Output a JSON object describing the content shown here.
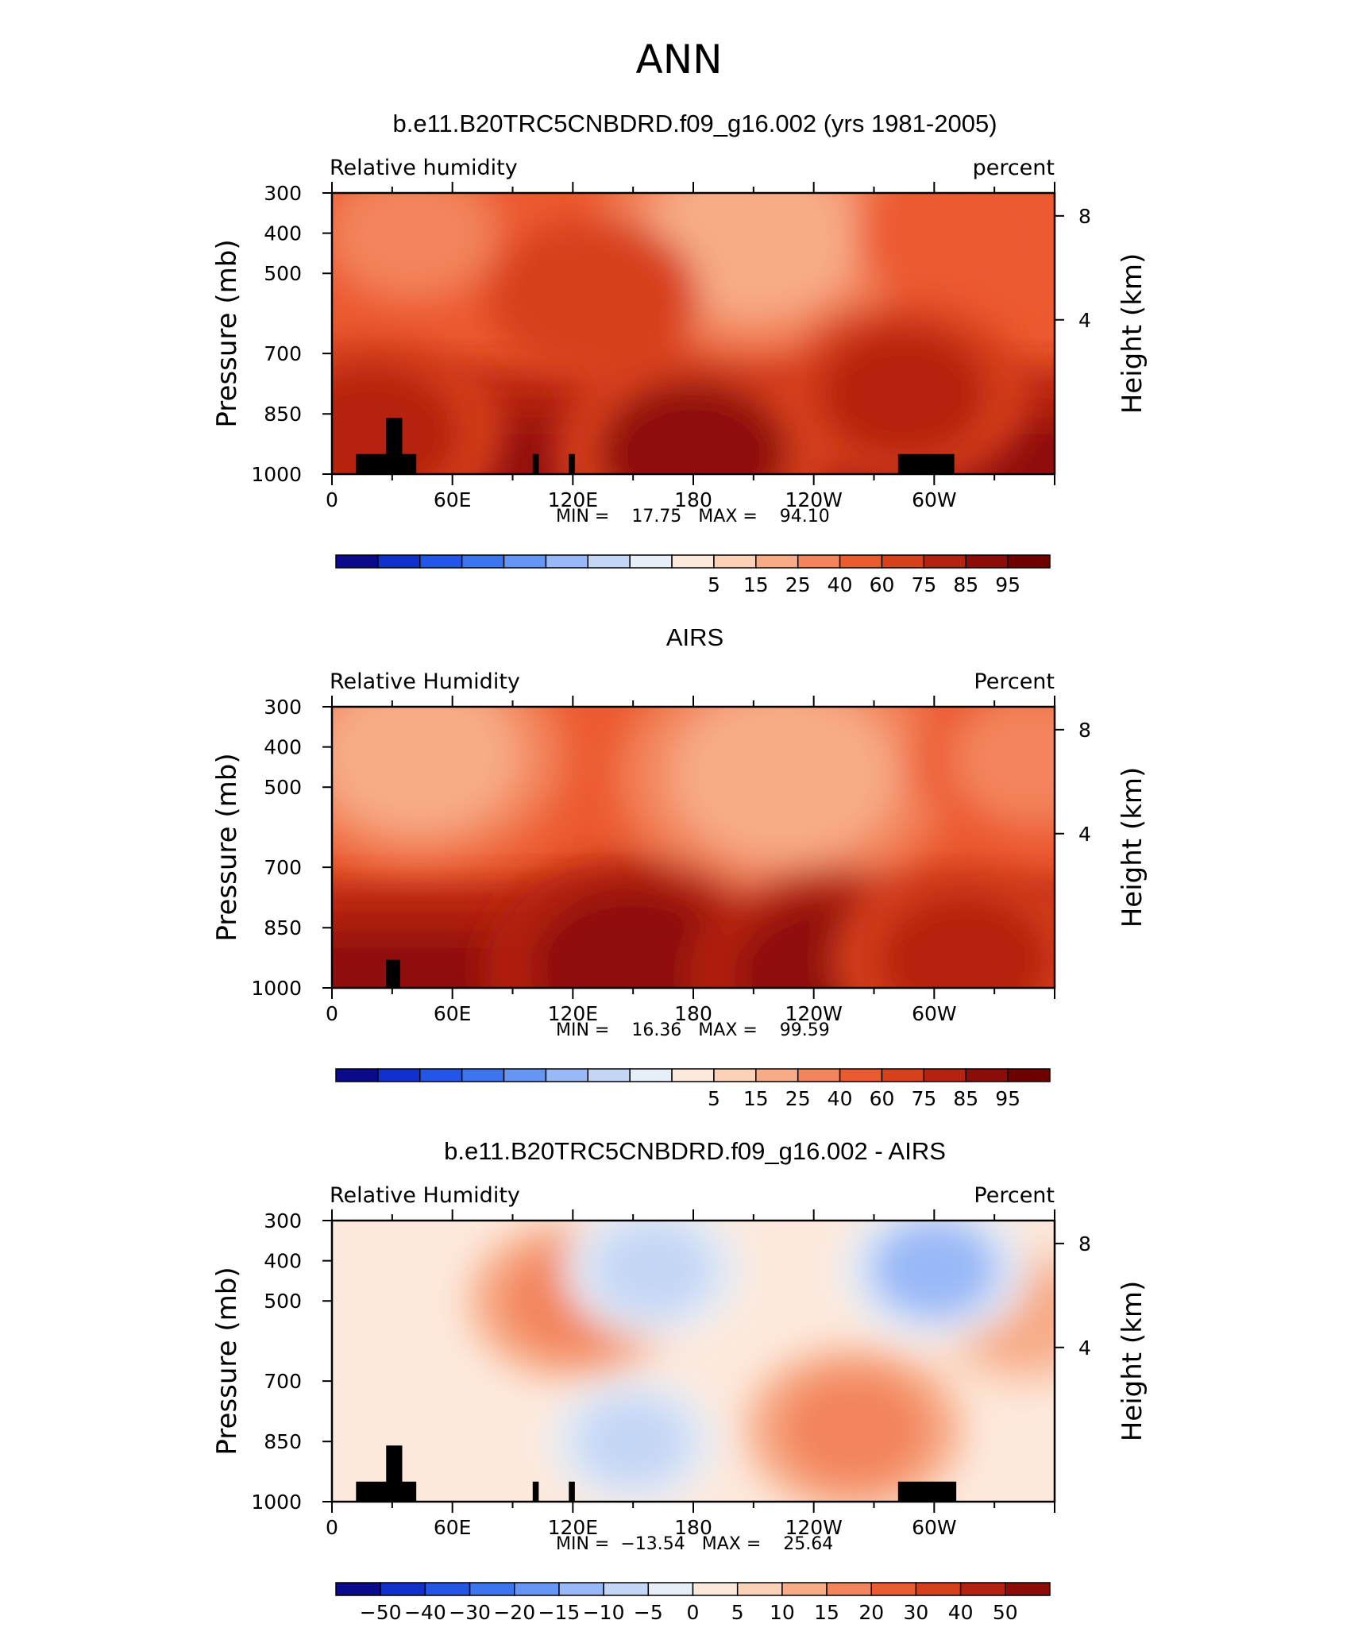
{
  "figure_title": "ANN",
  "chart_data": [
    {
      "type": "heatmap",
      "title": "b.e11.B20TRC5CNBDRD.f09_g16.002 (yrs 1981-2005)",
      "left_label": "Relative  humidity",
      "right_label": "percent",
      "ylabel": "Pressure  (mb)",
      "ylabel_right": "Height  (km)",
      "xlabel": "",
      "x_ticks": [
        "0",
        "60E",
        "120E",
        "180",
        "120W",
        "60W"
      ],
      "y_ticks": [
        "300",
        "400",
        "500",
        "700",
        "850",
        "1000"
      ],
      "y_ticks_right": [
        "4",
        "8"
      ],
      "xlim": [
        0,
        360
      ],
      "ylim": [
        1000,
        300
      ],
      "stats": "MIN =    17.75   MAX =    94.10",
      "colorbar_levels": [
        "5",
        "15",
        "25",
        "40",
        "60",
        "75",
        "85",
        "95"
      ],
      "colorbar_colors": [
        "#0a0a8c",
        "#0f2fcf",
        "#2356e8",
        "#3d74f0",
        "#6596f5",
        "#98b8f7",
        "#c4d6f5",
        "#e6eef8",
        "#fde9dc",
        "#fbd1b8",
        "#f7ac87",
        "#f3845b",
        "#ec5a30",
        "#d8401c",
        "#b52310",
        "#8e0c08",
        "#6e0000"
      ],
      "terrain_blocks": [
        {
          "lon": [
            12,
            33
          ],
          "p_top": 950
        },
        {
          "lon": [
            27,
            35
          ],
          "p_top": 860
        },
        {
          "lon": [
            33,
            42
          ],
          "p_top": 950
        },
        {
          "lon": [
            100,
            103
          ],
          "p_top": 950
        },
        {
          "lon": [
            118,
            121
          ],
          "p_top": 950
        },
        {
          "lon": [
            282,
            310
          ],
          "p_top": 950
        }
      ],
      "fields": [
        {
          "lon": 210,
          "p": 410,
          "value": 22
        },
        {
          "lon": 40,
          "p": 400,
          "value": 35
        },
        {
          "lon": 310,
          "p": 400,
          "value": 44
        },
        {
          "lon": 130,
          "p": 560,
          "value": 75
        },
        {
          "lon": 285,
          "p": 800,
          "value": 82
        },
        {
          "lon": 180,
          "p": 950,
          "value": 88
        },
        {
          "lon": 20,
          "p": 900,
          "value": 85
        }
      ]
    },
    {
      "type": "heatmap",
      "title": "AIRS",
      "left_label": "Relative  Humidity",
      "right_label": "Percent",
      "ylabel": "Pressure  (mb)",
      "ylabel_right": "Height  (km)",
      "xlabel": "",
      "x_ticks": [
        "0",
        "60E",
        "120E",
        "180",
        "120W",
        "60W"
      ],
      "y_ticks": [
        "300",
        "400",
        "500",
        "700",
        "850",
        "1000"
      ],
      "y_ticks_right": [
        "4",
        "8"
      ],
      "xlim": [
        0,
        360
      ],
      "ylim": [
        1000,
        300
      ],
      "stats": "MIN =    16.36   MAX =    99.59",
      "colorbar_levels": [
        "5",
        "15",
        "25",
        "40",
        "60",
        "75",
        "85",
        "95"
      ],
      "colorbar_colors": [
        "#0a0a8c",
        "#0f2fcf",
        "#2356e8",
        "#3d74f0",
        "#6596f5",
        "#98b8f7",
        "#c4d6f5",
        "#e6eef8",
        "#fde9dc",
        "#fbd1b8",
        "#f7ac87",
        "#f3845b",
        "#ec5a30",
        "#d8401c",
        "#b52310",
        "#8e0c08",
        "#6e0000"
      ],
      "terrain_blocks": [
        {
          "lon": [
            27,
            34
          ],
          "p_top": 930
        }
      ],
      "fields": [
        {
          "lon": 225,
          "p": 470,
          "value": 18
        },
        {
          "lon": 43,
          "p": 420,
          "value": 25
        },
        {
          "lon": 350,
          "p": 430,
          "value": 35
        },
        {
          "lon": 150,
          "p": 950,
          "value": 92
        },
        {
          "lon": 250,
          "p": 970,
          "value": 90
        },
        {
          "lon": 315,
          "p": 930,
          "value": 84
        }
      ]
    },
    {
      "type": "heatmap",
      "title": "b.e11.B20TRC5CNBDRD.f09_g16.002 - AIRS",
      "left_label": "Relative  Humidity",
      "right_label": "Percent",
      "ylabel": "Pressure  (mb)",
      "ylabel_right": "Height  (km)",
      "xlabel": "",
      "x_ticks": [
        "0",
        "60E",
        "120E",
        "180",
        "120W",
        "60W"
      ],
      "y_ticks": [
        "300",
        "400",
        "500",
        "700",
        "850",
        "1000"
      ],
      "y_ticks_right": [
        "4",
        "8"
      ],
      "xlim": [
        0,
        360
      ],
      "ylim": [
        1000,
        300
      ],
      "stats": "MIN =  −13.54   MAX =    25.64",
      "colorbar_levels": [
        "−50",
        "−40",
        "−30",
        "−20",
        "−15",
        "−10",
        "−5",
        "0",
        "5",
        "10",
        "15",
        "20",
        "30",
        "40",
        "50"
      ],
      "colorbar_colors": [
        "#0a0a8c",
        "#0f2fcf",
        "#2356e8",
        "#3d74f0",
        "#6596f5",
        "#98b8f7",
        "#c4d6f5",
        "#e6eef8",
        "#fde9dc",
        "#fbd1b8",
        "#f7ac87",
        "#f3845b",
        "#ec5a30",
        "#d8401c",
        "#b52310",
        "#8e0c08"
      ],
      "terrain_blocks": [
        {
          "lon": [
            12,
            33
          ],
          "p_top": 950
        },
        {
          "lon": [
            27,
            35
          ],
          "p_top": 860
        },
        {
          "lon": [
            33,
            42
          ],
          "p_top": 950
        },
        {
          "lon": [
            100,
            103
          ],
          "p_top": 950
        },
        {
          "lon": [
            118,
            121
          ],
          "p_top": 950
        },
        {
          "lon": [
            282,
            311
          ],
          "p_top": 950
        }
      ],
      "fields": [
        {
          "lon": 260,
          "p": 820,
          "value": 20
        },
        {
          "lon": 120,
          "p": 500,
          "value": 18
        },
        {
          "lon": 345,
          "p": 540,
          "value": 15
        },
        {
          "lon": 160,
          "p": 420,
          "value": -8
        },
        {
          "lon": 300,
          "p": 420,
          "value": -10
        },
        {
          "lon": 150,
          "p": 850,
          "value": -6
        }
      ]
    }
  ]
}
